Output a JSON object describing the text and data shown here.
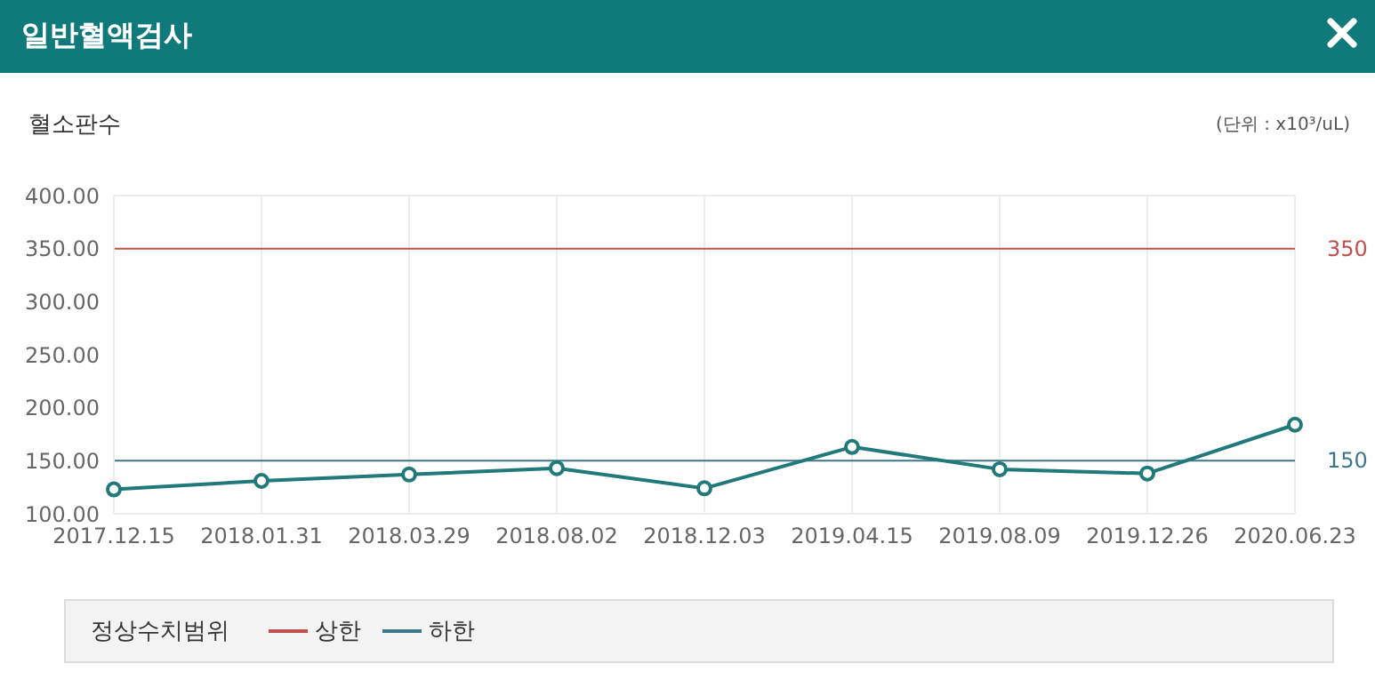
{
  "chart_data": {
    "type": "line",
    "title": "일반혈액검사",
    "subtitle": "혈소판수",
    "annotations": [
      "(단위 : x10³/uL)"
    ],
    "categories": [
      "2017.12.15",
      "2018.01.31",
      "2018.03.29",
      "2018.08.02",
      "2018.12.03",
      "2019.04.15",
      "2019.08.09",
      "2019.12.26",
      "2020.06.23"
    ],
    "series": [
      {
        "color": "#21797a",
        "values": [
          123,
          131,
          137,
          143,
          124,
          163,
          142,
          138,
          184
        ]
      }
    ],
    "ylim": [
      100,
      400
    ],
    "yticks": [
      {
        "value": 100,
        "label": "100.00"
      },
      {
        "value": 150,
        "label": "150.00"
      },
      {
        "value": 200,
        "label": "200.00"
      },
      {
        "value": 250,
        "label": "250.00"
      },
      {
        "value": 300,
        "label": "300.00"
      },
      {
        "value": 350,
        "label": "350.00"
      },
      {
        "value": 400,
        "label": "400.00"
      }
    ],
    "y2lim": [
      100,
      400
    ],
    "y2ticks": [
      150,
      350
    ],
    "ref_lines": [
      {
        "axis": "y",
        "value": 350,
        "label": "상한",
        "color": "#c0504d"
      },
      {
        "axis": "y",
        "value": 150,
        "label": "하한",
        "color": "#3d7589"
      }
    ],
    "legend_title": "정상수치범위",
    "legend": "bottom",
    "grid": true,
    "marker": "circle",
    "line_style": "solid"
  }
}
